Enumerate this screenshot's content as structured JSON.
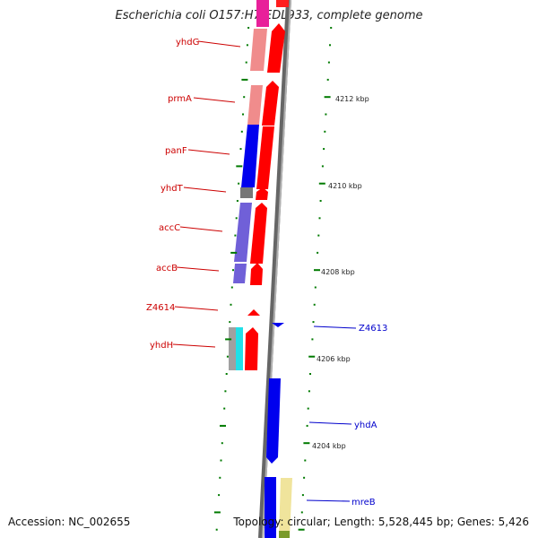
{
  "title": "Escherichia coli O157:H7 EDL933, complete genome",
  "footer": {
    "accession": "Accession: NC_002655",
    "summary": "Topology: circular; Length: 5,528,445 bp; Genes: 5,426"
  },
  "colors": {
    "forward_gene": "#ff0000",
    "reverse_gene": "#0000ff",
    "tick": "#007a00",
    "left_label": "#cc0000",
    "right_label": "#0000cc",
    "backbone": "#777777"
  },
  "scale_labels": [
    "4212 kbp",
    "4210 kbp",
    "4208 kbp",
    "4206 kbp",
    "4204 kbp"
  ],
  "left_gene_labels": [
    "yhdG",
    "prmA",
    "panF",
    "yhdT",
    "accC",
    "accB",
    "Z4614",
    "yhdH"
  ],
  "right_gene_labels": [
    "Z4613",
    "yhdA",
    "mreB"
  ]
}
